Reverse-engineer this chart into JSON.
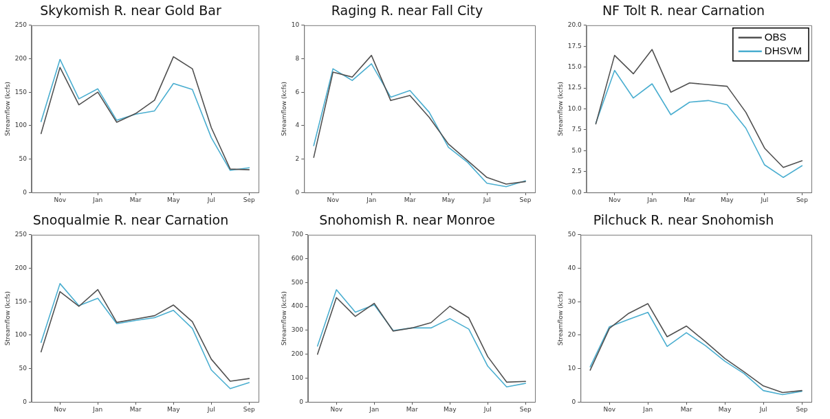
{
  "chart_data": [
    {
      "type": "line",
      "title": "Skykomish R. near Gold Bar",
      "ylabel": "Streamflow (kcfs)",
      "categories": [
        null,
        "Nov",
        null,
        "Jan",
        null,
        "Mar",
        null,
        "May",
        null,
        "Jul",
        null,
        "Sep"
      ],
      "ylim": [
        0,
        250
      ],
      "yticks": [
        0,
        50,
        100,
        150,
        200,
        250
      ],
      "grid": false,
      "legend": false,
      "marker": "none",
      "series": [
        {
          "color": "#505050",
          "values": [
            88,
            187,
            131,
            150,
            105,
            118,
            138,
            203,
            185,
            97,
            35,
            34
          ]
        },
        {
          "color": "#4aaed0",
          "values": [
            106,
            199,
            140,
            155,
            108,
            117,
            122,
            163,
            154,
            82,
            33,
            37
          ]
        }
      ]
    },
    {
      "type": "line",
      "title": "Raging R. near Fall City",
      "ylabel": "Streamflow (kcfs)",
      "categories": [
        null,
        "Nov",
        null,
        "Jan",
        null,
        "Mar",
        null,
        "May",
        null,
        "Jul",
        null,
        "Sep"
      ],
      "ylim": [
        0,
        10
      ],
      "yticks": [
        0,
        2,
        4,
        6,
        8,
        10
      ],
      "grid": false,
      "legend": false,
      "marker": "none",
      "series": [
        {
          "color": "#505050",
          "values": [
            2.1,
            7.2,
            6.9,
            8.2,
            5.5,
            5.8,
            4.5,
            2.9,
            1.9,
            0.9,
            0.5,
            0.65
          ]
        },
        {
          "color": "#4aaed0",
          "values": [
            2.8,
            7.4,
            6.7,
            7.7,
            5.7,
            6.1,
            4.8,
            2.7,
            1.8,
            0.55,
            0.35,
            0.7
          ]
        }
      ]
    },
    {
      "type": "line",
      "title": "NF Tolt R. near Carnation",
      "ylabel": "Streamflow (kcfs)",
      "categories": [
        null,
        "Nov",
        null,
        "Jan",
        null,
        "Mar",
        null,
        "May",
        null,
        "Jul",
        null,
        "Sep"
      ],
      "ylim": [
        0,
        20
      ],
      "yticks": [
        {
          "value": 0,
          "label": "0.0"
        },
        2.5,
        {
          "value": 5,
          "label": "5.0"
        },
        7.5,
        {
          "value": 10,
          "label": "10.0"
        },
        12.5,
        {
          "value": 15,
          "label": "15.0"
        },
        17.5,
        {
          "value": 20,
          "label": "20.0"
        }
      ],
      "grid": false,
      "legend": "top right",
      "marker": "none",
      "series": [
        {
          "name": "OBS",
          "color": "#505050",
          "values": [
            8.2,
            16.4,
            14.2,
            17.1,
            12.0,
            13.1,
            12.9,
            12.7,
            9.6,
            5.3,
            3.0,
            3.8
          ]
        },
        {
          "name": "DHSVM",
          "color": "#4aaed0",
          "values": [
            8.3,
            14.6,
            11.3,
            13.0,
            9.3,
            10.8,
            11.0,
            10.5,
            7.7,
            3.3,
            1.8,
            3.2
          ]
        }
      ]
    },
    {
      "type": "line",
      "title": "Snoqualmie R. near Carnation",
      "ylabel": "Streamflow (kcfs)",
      "categories": [
        null,
        "Nov",
        null,
        "Jan",
        null,
        "Mar",
        null,
        "May",
        null,
        "Jul",
        null,
        "Sep"
      ],
      "ylim": [
        0,
        250
      ],
      "yticks": [
        0,
        50,
        100,
        150,
        200,
        250
      ],
      "grid": false,
      "legend": false,
      "marker": "none",
      "series": [
        {
          "color": "#505050",
          "values": [
            75,
            165,
            143,
            168,
            119,
            124,
            129,
            145,
            120,
            64,
            31,
            35
          ]
        },
        {
          "color": "#4aaed0",
          "values": [
            89,
            177,
            144,
            155,
            117,
            122,
            126,
            137,
            110,
            48,
            20,
            29
          ]
        }
      ]
    },
    {
      "type": "line",
      "title": "Snohomish R. near Monroe",
      "ylabel": "Streamflow (kcfs)",
      "categories": [
        null,
        "Nov",
        null,
        "Jan",
        null,
        "Mar",
        null,
        "May",
        null,
        "Jul",
        null,
        "Sep"
      ],
      "ylim": [
        0,
        700
      ],
      "yticks": [
        0,
        100,
        200,
        300,
        400,
        500,
        600,
        700
      ],
      "grid": false,
      "legend": false,
      "marker": "none",
      "series": [
        {
          "color": "#505050",
          "values": [
            200,
            437,
            358,
            413,
            297,
            310,
            332,
            401,
            352,
            190,
            83,
            86
          ]
        },
        {
          "color": "#4aaed0",
          "values": [
            234,
            470,
            376,
            407,
            299,
            310,
            310,
            349,
            305,
            150,
            63,
            78
          ]
        }
      ]
    },
    {
      "type": "line",
      "title": "Pilchuck R. near Snohomish",
      "ylabel": "Streamflow (kcfs)",
      "categories": [
        null,
        "Nov",
        null,
        "Jan",
        null,
        "Mar",
        null,
        "May",
        null,
        "Jul",
        null,
        "Sep"
      ],
      "ylim": [
        0,
        50
      ],
      "yticks": [
        0,
        10,
        20,
        30,
        40,
        50
      ],
      "grid": false,
      "legend": false,
      "marker": "none",
      "series": [
        {
          "color": "#505050",
          "values": [
            9.5,
            22,
            26.5,
            29.4,
            19.5,
            22.7,
            18,
            13,
            9,
            4.8,
            2.8,
            3.4
          ]
        },
        {
          "color": "#4aaed0",
          "values": [
            10.5,
            22.5,
            24.7,
            26.8,
            16.6,
            20.7,
            16.8,
            12.2,
            8.5,
            3.4,
            2.2,
            3.2
          ]
        }
      ]
    }
  ]
}
